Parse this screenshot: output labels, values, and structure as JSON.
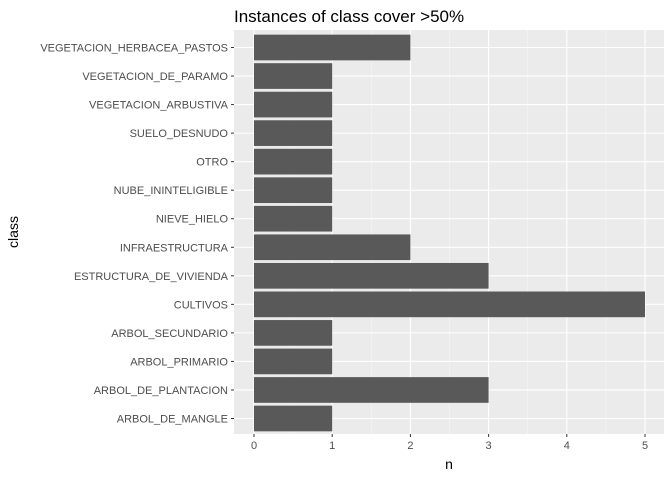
{
  "chart_data": {
    "type": "bar",
    "orientation": "horizontal",
    "title": "Instances of class cover >50%",
    "xlabel": "n",
    "ylabel": "class",
    "categories": [
      "VEGETACION_HERBACEA_PASTOS",
      "VEGETACION_DE_PARAMO",
      "VEGETACION_ARBUSTIVA",
      "SUELO_DESNUDO",
      "OTRO",
      "NUBE_ININTELIGIBLE",
      "NIEVE_HIELO",
      "INFRAESTRUCTURA",
      "ESTRUCTURA_DE_VIVIENDA",
      "CULTIVOS",
      "ARBOL_SECUNDARIO",
      "ARBOL_PRIMARIO",
      "ARBOL_DE_PLANTACION",
      "ARBOL_DE_MANGLE"
    ],
    "values": [
      2,
      1,
      1,
      1,
      1,
      1,
      1,
      2,
      3,
      5,
      1,
      1,
      3,
      1
    ],
    "xlim": [
      0,
      5
    ],
    "x_ticks": [
      0,
      1,
      2,
      3,
      4,
      5
    ],
    "grid": true,
    "legend": "none",
    "colors": {
      "bar": "#595959",
      "panel": "#ebebeb",
      "grid_major": "#ffffff",
      "grid_minor": "#f5f5f5",
      "tick_label": "#4d4d4d",
      "tick_mark": "#333333",
      "text": "#000000"
    }
  }
}
